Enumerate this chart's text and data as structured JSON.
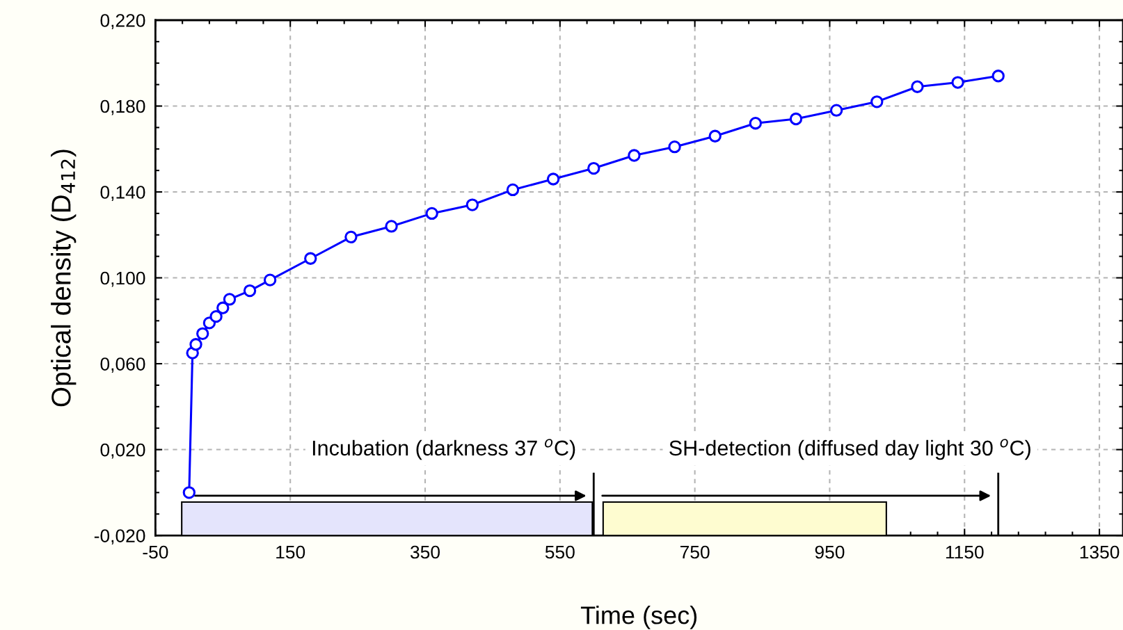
{
  "chart_data": {
    "type": "line",
    "xlabel": "Time (sec)",
    "ylabel": "Optical density (D$_{412}$)",
    "x": [
      0,
      5,
      10,
      20,
      30,
      40,
      50,
      60,
      90,
      120,
      180,
      240,
      300,
      360,
      420,
      480,
      540,
      600,
      660,
      720,
      780,
      840,
      900,
      960,
      1020,
      1080,
      1140,
      1200
    ],
    "series": [
      {
        "color": "#0000ff",
        "values": [
          0.0,
          0.065,
          0.069,
          0.074,
          0.079,
          0.082,
          0.086,
          0.09,
          0.094,
          0.099,
          0.109,
          0.119,
          0.124,
          0.13,
          0.134,
          0.141,
          0.146,
          0.151,
          0.157,
          0.161,
          0.166,
          0.172,
          0.174,
          0.178,
          0.182,
          0.189,
          0.191,
          0.194
        ]
      }
    ],
    "marker": "circle",
    "line_style": "solid",
    "grid": true,
    "bands": [
      {
        "axis": "x",
        "from": -11,
        "to": 598,
        "color": "#e4e4fc"
      },
      {
        "axis": "x",
        "from": 614,
        "to": 1034,
        "color": "#fefcd0"
      }
    ],
    "ref_lines": [
      {
        "axis": "x",
        "value": 600,
        "color": "#000000"
      },
      {
        "axis": "x",
        "value": 1200,
        "color": "#000000"
      }
    ],
    "xlim": [
      -50,
      1385
    ],
    "xticks": [
      -50,
      150,
      350,
      550,
      750,
      950,
      1150,
      1350
    ],
    "ylim": [
      -0.02,
      0.22
    ],
    "yticks": [
      {
        "value": -0.02,
        "label": "-0,020"
      },
      {
        "value": 0.02,
        "label": "0,020"
      },
      {
        "value": 0.06,
        "label": "0,060"
      },
      {
        "value": 0.1,
        "label": "0,100"
      },
      {
        "value": 0.14,
        "label": "0,140"
      },
      {
        "value": 0.18,
        "label": "0,180"
      },
      {
        "value": 0.22,
        "label": "0,220"
      }
    ],
    "annotations": [
      "Incubation (darkness 37 $^{o}$C)",
      "SH-detection (diffused day light 30 $^{o}$C)"
    ]
  }
}
